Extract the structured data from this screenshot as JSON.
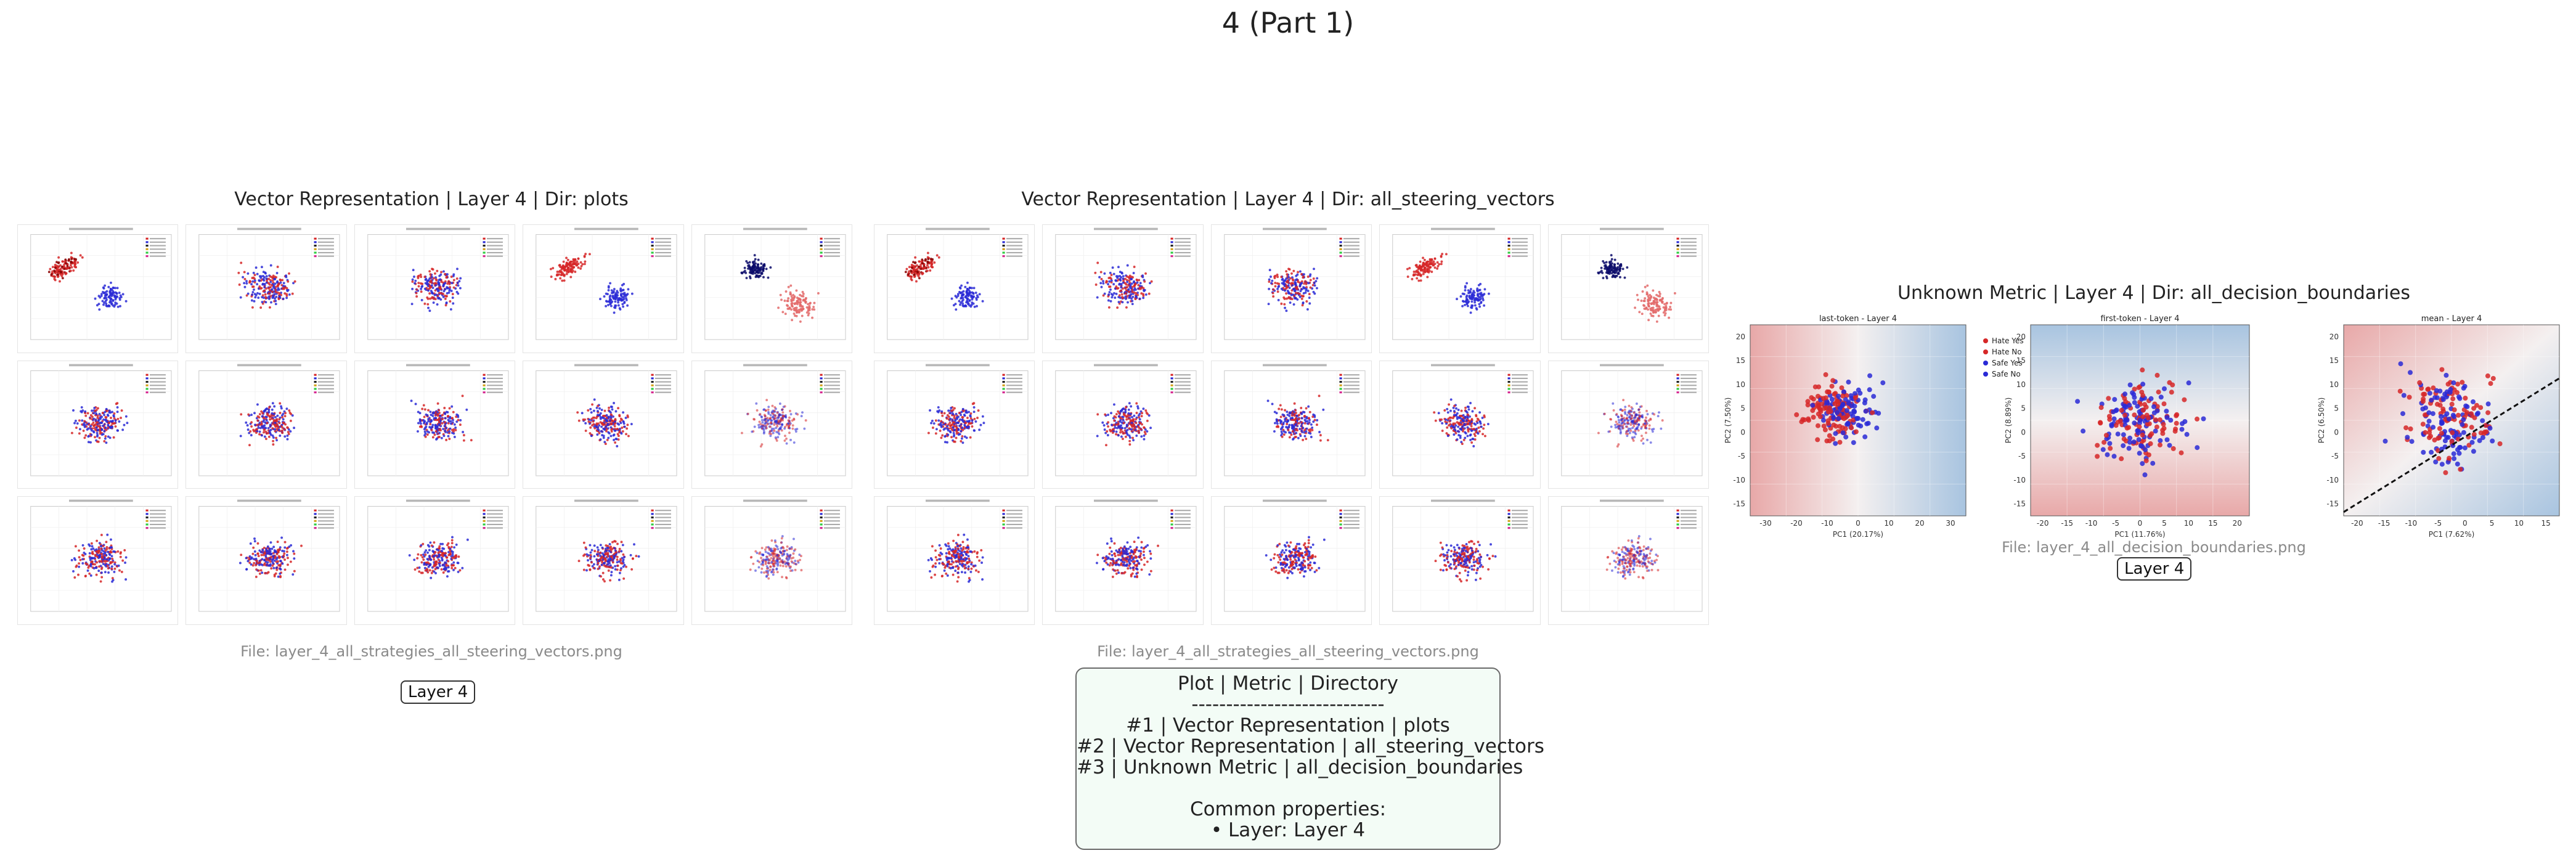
{
  "page": {
    "title": "4 (Part 1)"
  },
  "panels": [
    {
      "title": "Vector Representation | Layer 4 | Dir: plots",
      "file": "File: layer_4_all_strategies_all_steering_vectors.png",
      "badge": "Layer 4"
    },
    {
      "title": "Vector Representation | Layer 4 | Dir: all_steering_vectors",
      "file": "File: layer_4_all_strategies_all_steering_vectors.png"
    },
    {
      "title": "Unknown Metric | Layer 4 | Dir: all_decision_boundaries",
      "file": "File: layer_4_all_decision_boundaries.png",
      "badge": "Layer 4"
    }
  ],
  "summary": {
    "lines": [
      "Plot | Metric | Directory",
      "----------------------------",
      "#1 | Vector Representation | plots",
      "#2 | Vector Representation | all_steering_vectors",
      "#3 | Unknown Metric | all_decision_boundaries",
      "",
      "Common properties:",
      "• Layer: Layer 4"
    ]
  },
  "decision_boundary_plots": [
    {
      "title": "last-token - Layer 4",
      "xlabel": "PC1 (20.17%)",
      "ylabel": "PC2 (7.50%)",
      "xticks": [
        "-30",
        "-20",
        "-10",
        "0",
        "10",
        "20",
        "30"
      ],
      "yticks": [
        "20",
        "15",
        "10",
        "5",
        "0",
        "-5",
        "-10",
        "-15"
      ],
      "legend": [
        "Hate Yes",
        "Hate No",
        "Safe Yes",
        "Safe No"
      ]
    },
    {
      "title": "first-token - Layer 4",
      "xlabel": "PC1 (11.76%)",
      "ylabel": "PC2 (8.89%)",
      "xticks": [
        "-20",
        "-15",
        "-10",
        "-5",
        "0",
        "5",
        "10",
        "15",
        "20"
      ],
      "yticks": [
        "20",
        "15",
        "10",
        "5",
        "0",
        "-5",
        "-10",
        "-15"
      ]
    },
    {
      "title": "mean - Layer 4",
      "xlabel": "PC1 (7.62%)",
      "ylabel": "PC2 (6.50%)",
      "xticks": [
        "-20",
        "-15",
        "-10",
        "-5",
        "0",
        "5",
        "10",
        "15"
      ],
      "yticks": [
        "20",
        "15",
        "10",
        "5",
        "0",
        "-5",
        "-10",
        "-15"
      ]
    }
  ],
  "colors": {
    "hate": "#d62728",
    "safe": "#2a2ad6",
    "hate_region": "#e8a8a8",
    "safe_region": "#a8c4e0",
    "summary_bg": "#f3fcf6"
  }
}
